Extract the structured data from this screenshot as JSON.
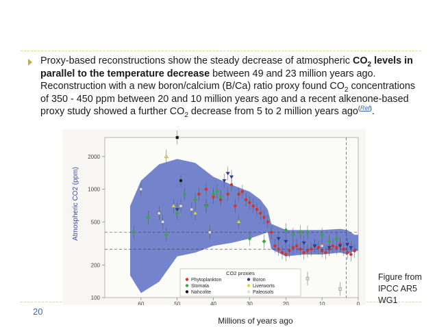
{
  "slide": {
    "bullet": {
      "t1": "Proxy-based reconstructions show the steady decrease of atmospheric ",
      "co": "CO",
      "sub2": "2",
      "t2": " levels in parallel to the temperature decrease",
      "t3": " between 49 and 23 million years ago. Reconstruction with a new boron/calcium (B/Ca) ratio proxy found CO",
      "t4": " concentrations of 350 - 450 ppm between 20 and 10 million years ago and a recent alkenone-based proxy study showed a further CO",
      "t5": " decrease from 5 to 2 million years ago",
      "ref": "Ref",
      "sup_open": "(",
      "sup_close": ")",
      "t6": "."
    },
    "caption": "Figure from IPCC AR5 WG1",
    "page_number": "20",
    "x_caption": "Millions of years ago"
  },
  "chart_data": {
    "type": "scatter",
    "ylabel": "Atmospheric CO2 (ppm)",
    "xlabel": "Millions of years ago",
    "y_scale": "log",
    "ylim": [
      100,
      3000
    ],
    "xlim": [
      70,
      0
    ],
    "y_ticks": [
      "2000",
      "1000",
      "500",
      "200",
      "100"
    ],
    "x_ticks": [
      "60",
      "50",
      "40",
      "30",
      "20",
      "10",
      "0"
    ],
    "legend": {
      "title": "CO2 proxies",
      "placement": "bottom-center",
      "items": [
        "Phytoplankton",
        "Boron",
        "Stomata",
        "Liverworts",
        "Nahcolite",
        "Paleosols"
      ]
    },
    "colors": {
      "envelope": "#5b6fc4",
      "phytoplankton": "#d9302a",
      "boron": "#2a3a8c",
      "stomata": "#3aa34a",
      "liverworts": "#d8d83a",
      "nahcolite": "#111111",
      "paleosols": "#dddddd"
    },
    "envelope_band": {
      "x": [
        63,
        60,
        55,
        50,
        45,
        40,
        35,
        30,
        27,
        25,
        24,
        20,
        15,
        10,
        5,
        3,
        2,
        1,
        0
      ],
      "upper": [
        700,
        1200,
        1700,
        1900,
        1750,
        1300,
        1100,
        950,
        800,
        650,
        480,
        420,
        420,
        420,
        430,
        420,
        400,
        380,
        380
      ],
      "lower": [
        160,
        110,
        140,
        240,
        260,
        300,
        320,
        350,
        380,
        400,
        280,
        240,
        250,
        250,
        260,
        250,
        260,
        270,
        270
      ]
    },
    "series": [
      {
        "name": "Phytoplankton",
        "x": [
          44,
          42,
          40,
          38,
          36,
          35,
          34,
          33,
          32,
          31,
          30,
          29,
          28,
          27,
          26,
          25,
          24,
          23,
          22,
          21,
          20,
          19,
          18,
          17,
          16,
          15,
          14,
          13,
          12,
          11,
          10,
          9,
          8,
          7,
          6,
          5,
          4,
          3,
          2,
          1
        ],
        "y": [
          900,
          1000,
          850,
          800,
          900,
          1100,
          700,
          900,
          950,
          800,
          750,
          700,
          650,
          600,
          550,
          500,
          400,
          300,
          280,
          260,
          250,
          270,
          290,
          300,
          280,
          260,
          270,
          280,
          300,
          290,
          270,
          260,
          280,
          300,
          290,
          310,
          280,
          260,
          250,
          270
        ]
      },
      {
        "name": "Boron",
        "x": [
          55,
          50,
          42,
          37,
          36,
          35,
          22,
          20,
          15,
          12,
          8,
          5,
          3,
          2
        ],
        "y": [
          600,
          650,
          700,
          1200,
          1400,
          1300,
          350,
          330,
          320,
          300,
          290,
          300,
          310,
          290
        ]
      },
      {
        "name": "Stomata",
        "x": [
          62,
          58,
          53,
          50,
          48,
          45,
          42,
          40,
          39,
          38,
          30,
          26,
          20,
          18,
          16,
          14,
          10,
          8,
          6
        ],
        "y": [
          400,
          550,
          380,
          600,
          900,
          800,
          700,
          900,
          950,
          850,
          350,
          330,
          420,
          380,
          400,
          400,
          380,
          330,
          350
        ]
      },
      {
        "name": "Liverworts",
        "x": [
          53,
          51,
          45,
          33
        ],
        "y": [
          2000,
          700,
          600,
          500
        ]
      },
      {
        "name": "Nahcolite",
        "x": [
          50,
          49
        ],
        "y": [
          3000,
          1200
        ]
      },
      {
        "name": "Paleosols",
        "x": [
          60,
          55,
          54,
          49,
          46,
          41,
          14,
          10,
          5
        ],
        "y": [
          1000,
          600,
          500,
          700,
          650,
          400,
          150,
          300,
          120
        ]
      }
    ]
  }
}
